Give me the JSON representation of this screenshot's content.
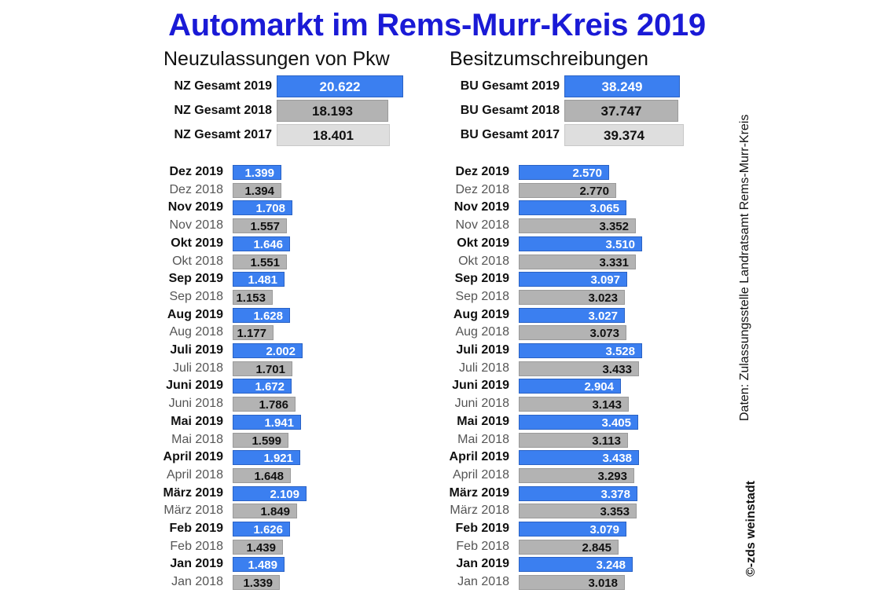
{
  "title": "Automarkt im Rems-Murr-Kreis 2019",
  "source": "Daten: Zulassungsstelle Landratsamt Rems-Murr-Kreis",
  "credit": "©-zds  weinstadt",
  "colors": {
    "year2019": "#3b7ff0",
    "year2018": "#b3b3b3",
    "year2017": "#dedede",
    "title": "#1a1ad6"
  },
  "chart_data": [
    {
      "type": "bar",
      "orientation": "horizontal",
      "title": "Neuzulassungen von Pkw",
      "totals": [
        {
          "label": "NZ Gesamt 2019",
          "value": 20622,
          "display": "20.622"
        },
        {
          "label": "NZ Gesamt 2018",
          "value": 18193,
          "display": "18.193"
        },
        {
          "label": "NZ Gesamt 2017",
          "value": 18401,
          "display": "18.401"
        }
      ],
      "months": [
        {
          "label": "Dez 2019",
          "year": 2019,
          "value": 1399,
          "display": "1.399"
        },
        {
          "label": "Dez 2018",
          "year": 2018,
          "value": 1394,
          "display": "1.394"
        },
        {
          "label": "Nov 2019",
          "year": 2019,
          "value": 1708,
          "display": "1.708"
        },
        {
          "label": "Nov 2018",
          "year": 2018,
          "value": 1557,
          "display": "1.557"
        },
        {
          "label": "Okt 2019",
          "year": 2019,
          "value": 1646,
          "display": "1.646"
        },
        {
          "label": "Okt 2018",
          "year": 2018,
          "value": 1551,
          "display": "1.551"
        },
        {
          "label": "Sep 2019",
          "year": 2019,
          "value": 1481,
          "display": "1.481"
        },
        {
          "label": "Sep 2018",
          "year": 2018,
          "value": 1153,
          "display": "1.153"
        },
        {
          "label": "Aug 2019",
          "year": 2019,
          "value": 1628,
          "display": "1.628"
        },
        {
          "label": "Aug 2018",
          "year": 2018,
          "value": 1177,
          "display": "1.177"
        },
        {
          "label": "Juli 2019",
          "year": 2019,
          "value": 2002,
          "display": "2.002"
        },
        {
          "label": "Juli 2018",
          "year": 2018,
          "value": 1701,
          "display": "1.701"
        },
        {
          "label": "Juni 2019",
          "year": 2019,
          "value": 1672,
          "display": "1.672"
        },
        {
          "label": "Juni 2018",
          "year": 2018,
          "value": 1786,
          "display": "1.786"
        },
        {
          "label": "Mai 2019",
          "year": 2019,
          "value": 1941,
          "display": "1.941"
        },
        {
          "label": "Mai 2018",
          "year": 2018,
          "value": 1599,
          "display": "1.599"
        },
        {
          "label": "April 2019",
          "year": 2019,
          "value": 1921,
          "display": "1.921"
        },
        {
          "label": "April 2018",
          "year": 2018,
          "value": 1648,
          "display": "1.648"
        },
        {
          "label": "März 2019",
          "year": 2019,
          "value": 2109,
          "display": "2.109"
        },
        {
          "label": "März 2018",
          "year": 2018,
          "value": 1849,
          "display": "1.849"
        },
        {
          "label": "Feb 2019",
          "year": 2019,
          "value": 1626,
          "display": "1.626"
        },
        {
          "label": "Feb 2018",
          "year": 2018,
          "value": 1439,
          "display": "1.439"
        },
        {
          "label": "Jan 2019",
          "year": 2019,
          "value": 1489,
          "display": "1.489"
        },
        {
          "label": "Jan 2018",
          "year": 2018,
          "value": 1339,
          "display": "1.339"
        }
      ]
    },
    {
      "type": "bar",
      "orientation": "horizontal",
      "title": "Besitzumschreibungen",
      "totals": [
        {
          "label": "BU Gesamt 2019",
          "value": 38249,
          "display": "38.249"
        },
        {
          "label": "BU Gesamt 2018",
          "value": 37747,
          "display": "37.747"
        },
        {
          "label": "BU Gesamt 2017",
          "value": 39374,
          "display": "39.374"
        }
      ],
      "months": [
        {
          "label": "Dez 2019",
          "year": 2019,
          "value": 2570,
          "display": "2.570"
        },
        {
          "label": "Dez 2018",
          "year": 2018,
          "value": 2770,
          "display": "2.770"
        },
        {
          "label": "Nov 2019",
          "year": 2019,
          "value": 3065,
          "display": "3.065"
        },
        {
          "label": "Nov 2018",
          "year": 2018,
          "value": 3352,
          "display": "3.352"
        },
        {
          "label": "Okt 2019",
          "year": 2019,
          "value": 3510,
          "display": "3.510"
        },
        {
          "label": "Okt 2018",
          "year": 2018,
          "value": 3331,
          "display": "3.331"
        },
        {
          "label": "Sep 2019",
          "year": 2019,
          "value": 3097,
          "display": "3.097"
        },
        {
          "label": "Sep 2018",
          "year": 2018,
          "value": 3023,
          "display": "3.023"
        },
        {
          "label": "Aug 2019",
          "year": 2019,
          "value": 3027,
          "display": "3.027"
        },
        {
          "label": "Aug 2018",
          "year": 2018,
          "value": 3073,
          "display": "3.073"
        },
        {
          "label": "Juli 2019",
          "year": 2019,
          "value": 3528,
          "display": "3.528"
        },
        {
          "label": "Juli 2018",
          "year": 2018,
          "value": 3433,
          "display": "3.433"
        },
        {
          "label": "Juni 2019",
          "year": 2019,
          "value": 2904,
          "display": "2.904"
        },
        {
          "label": "Juni 2018",
          "year": 2018,
          "value": 3143,
          "display": "3.143"
        },
        {
          "label": "Mai 2019",
          "year": 2019,
          "value": 3405,
          "display": "3.405"
        },
        {
          "label": "Mai 2018",
          "year": 2018,
          "value": 3113,
          "display": "3.113"
        },
        {
          "label": "April 2019",
          "year": 2019,
          "value": 3438,
          "display": "3.438"
        },
        {
          "label": "April 2018",
          "year": 2018,
          "value": 3293,
          "display": "3.293"
        },
        {
          "label": "März 2019",
          "year": 2019,
          "value": 3378,
          "display": "3.378"
        },
        {
          "label": "März 2018",
          "year": 2018,
          "value": 3353,
          "display": "3.353"
        },
        {
          "label": "Feb 2019",
          "year": 2019,
          "value": 3079,
          "display": "3.079"
        },
        {
          "label": "Feb 2018",
          "year": 2018,
          "value": 2845,
          "display": "2.845"
        },
        {
          "label": "Jan 2019",
          "year": 2019,
          "value": 3248,
          "display": "3.248"
        },
        {
          "label": "Jan 2018",
          "year": 2018,
          "value": 3018,
          "display": "3.018"
        }
      ]
    }
  ]
}
